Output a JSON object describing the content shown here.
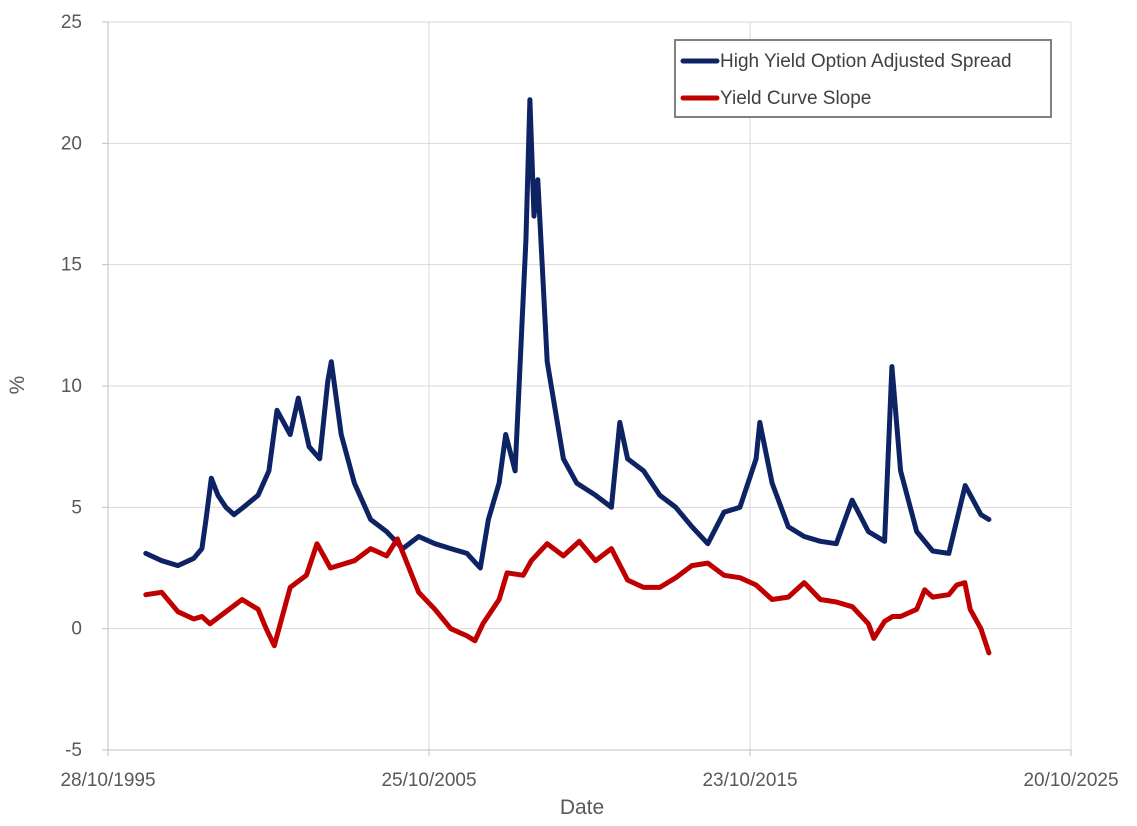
{
  "chart_data": {
    "type": "line",
    "title": "",
    "xlabel": "Date",
    "ylabel": "%",
    "xlim": [
      "1995-10-28",
      "2025-10-20"
    ],
    "ylim": [
      -5,
      25
    ],
    "y_ticks": [
      -5,
      0,
      5,
      10,
      15,
      20,
      25
    ],
    "y_tick_labels": [
      "-5",
      "0",
      "5",
      "10",
      "15",
      "20",
      "25"
    ],
    "x_ticks": [
      "1995-10-28",
      "2005-10-25",
      "2015-10-23",
      "2025-10-20"
    ],
    "x_tick_labels": [
      "28/10/1995",
      "25/10/2005",
      "23/10/2015",
      "20/10/2025"
    ],
    "grid": true,
    "legend_position": "top-right",
    "colors": {
      "spread": "#0d2364",
      "slope": "#c00000",
      "grid": "#d9d9d9",
      "axis": "#bfbfbf"
    },
    "series": [
      {
        "name": "High Yield Option Adjusted Spread",
        "color": "#0d2364",
        "points": [
          [
            "1996-12-31",
            3.1
          ],
          [
            "1997-06-30",
            2.8
          ],
          [
            "1997-12-31",
            2.6
          ],
          [
            "1998-06-30",
            2.9
          ],
          [
            "1998-09-30",
            3.3
          ],
          [
            "1998-11-15",
            4.5
          ],
          [
            "1999-01-15",
            6.2
          ],
          [
            "1999-03-31",
            5.5
          ],
          [
            "1999-06-30",
            5.0
          ],
          [
            "1999-09-30",
            4.7
          ],
          [
            "2000-01-15",
            5.0
          ],
          [
            "2000-06-30",
            5.5
          ],
          [
            "2000-10-31",
            6.5
          ],
          [
            "2001-01-31",
            9.0
          ],
          [
            "2001-06-30",
            8.0
          ],
          [
            "2001-09-30",
            9.5
          ],
          [
            "2002-01-31",
            7.5
          ],
          [
            "2002-05-31",
            7.0
          ],
          [
            "2002-08-31",
            10.2
          ],
          [
            "2002-10-10",
            11.0
          ],
          [
            "2003-01-31",
            8.0
          ],
          [
            "2003-06-30",
            6.0
          ],
          [
            "2003-12-31",
            4.5
          ],
          [
            "2004-06-30",
            4.0
          ],
          [
            "2004-12-31",
            3.3
          ],
          [
            "2005-06-30",
            3.8
          ],
          [
            "2005-12-31",
            3.5
          ],
          [
            "2006-06-30",
            3.3
          ],
          [
            "2006-12-31",
            3.1
          ],
          [
            "2007-05-31",
            2.5
          ],
          [
            "2007-08-31",
            4.5
          ],
          [
            "2007-12-31",
            6.0
          ],
          [
            "2008-03-15",
            8.0
          ],
          [
            "2008-06-30",
            6.5
          ],
          [
            "2008-10-31",
            16.0
          ],
          [
            "2008-12-15",
            21.8
          ],
          [
            "2009-01-31",
            17.0
          ],
          [
            "2009-03-15",
            18.5
          ],
          [
            "2009-06-30",
            11.0
          ],
          [
            "2009-12-31",
            7.0
          ],
          [
            "2010-05-31",
            6.0
          ],
          [
            "2010-12-31",
            5.5
          ],
          [
            "2011-06-30",
            5.0
          ],
          [
            "2011-10-04",
            8.5
          ],
          [
            "2011-12-31",
            7.0
          ],
          [
            "2012-06-30",
            6.5
          ],
          [
            "2012-12-31",
            5.5
          ],
          [
            "2013-06-30",
            5.0
          ],
          [
            "2013-12-31",
            4.2
          ],
          [
            "2014-06-30",
            3.5
          ],
          [
            "2014-12-31",
            4.8
          ],
          [
            "2015-06-30",
            5.0
          ],
          [
            "2015-12-31",
            7.0
          ],
          [
            "2016-02-11",
            8.5
          ],
          [
            "2016-06-30",
            6.0
          ],
          [
            "2016-12-31",
            4.2
          ],
          [
            "2017-06-30",
            3.8
          ],
          [
            "2017-12-31",
            3.6
          ],
          [
            "2018-06-30",
            3.5
          ],
          [
            "2018-12-27",
            5.3
          ],
          [
            "2019-06-30",
            4.0
          ],
          [
            "2019-12-31",
            3.6
          ],
          [
            "2020-03-23",
            10.8
          ],
          [
            "2020-06-30",
            6.5
          ],
          [
            "2020-12-31",
            4.0
          ],
          [
            "2021-06-30",
            3.2
          ],
          [
            "2021-12-31",
            3.1
          ],
          [
            "2022-07-05",
            5.9
          ],
          [
            "2022-12-31",
            4.7
          ],
          [
            "2023-03-31",
            4.5
          ]
        ]
      },
      {
        "name": "Yield Curve Slope",
        "color": "#c00000",
        "points": [
          [
            "1996-12-31",
            1.4
          ],
          [
            "1997-06-30",
            1.5
          ],
          [
            "1997-12-31",
            0.7
          ],
          [
            "1998-06-30",
            0.4
          ],
          [
            "1998-09-30",
            0.5
          ],
          [
            "1998-12-31",
            0.2
          ],
          [
            "1999-06-30",
            0.7
          ],
          [
            "1999-12-31",
            1.2
          ],
          [
            "2000-06-30",
            0.8
          ],
          [
            "2000-09-30",
            0.0
          ],
          [
            "2000-12-31",
            -0.7
          ],
          [
            "2001-06-30",
            1.7
          ],
          [
            "2001-12-31",
            2.2
          ],
          [
            "2002-04-30",
            3.5
          ],
          [
            "2002-09-30",
            2.5
          ],
          [
            "2003-06-30",
            2.8
          ],
          [
            "2003-12-31",
            3.3
          ],
          [
            "2004-06-30",
            3.0
          ],
          [
            "2004-10-31",
            3.7
          ],
          [
            "2005-06-30",
            1.5
          ],
          [
            "2005-12-31",
            0.8
          ],
          [
            "2006-06-30",
            0.0
          ],
          [
            "2006-12-31",
            -0.3
          ],
          [
            "2007-03-31",
            -0.5
          ],
          [
            "2007-06-30",
            0.2
          ],
          [
            "2007-12-31",
            1.2
          ],
          [
            "2008-03-31",
            2.3
          ],
          [
            "2008-09-30",
            2.2
          ],
          [
            "2008-12-31",
            2.8
          ],
          [
            "2009-06-30",
            3.5
          ],
          [
            "2009-12-31",
            3.0
          ],
          [
            "2010-06-30",
            3.6
          ],
          [
            "2010-12-31",
            2.8
          ],
          [
            "2011-06-30",
            3.3
          ],
          [
            "2011-12-31",
            2.0
          ],
          [
            "2012-06-30",
            1.7
          ],
          [
            "2012-12-31",
            1.7
          ],
          [
            "2013-06-30",
            2.1
          ],
          [
            "2013-12-31",
            2.6
          ],
          [
            "2014-06-30",
            2.7
          ],
          [
            "2014-12-31",
            2.2
          ],
          [
            "2015-06-30",
            2.1
          ],
          [
            "2015-12-31",
            1.8
          ],
          [
            "2016-06-30",
            1.2
          ],
          [
            "2016-12-31",
            1.3
          ],
          [
            "2017-06-30",
            1.9
          ],
          [
            "2017-12-31",
            1.2
          ],
          [
            "2018-06-30",
            1.1
          ],
          [
            "2018-12-31",
            0.9
          ],
          [
            "2019-06-30",
            0.2
          ],
          [
            "2019-08-31",
            -0.4
          ],
          [
            "2019-12-31",
            0.3
          ],
          [
            "2020-03-31",
            0.5
          ],
          [
            "2020-06-30",
            0.5
          ],
          [
            "2020-12-31",
            0.8
          ],
          [
            "2021-03-31",
            1.6
          ],
          [
            "2021-06-30",
            1.3
          ],
          [
            "2021-12-31",
            1.4
          ],
          [
            "2022-03-31",
            1.8
          ],
          [
            "2022-06-30",
            1.9
          ],
          [
            "2022-08-31",
            0.8
          ],
          [
            "2022-12-31",
            0.0
          ],
          [
            "2023-03-31",
            -1.0
          ]
        ]
      }
    ]
  }
}
